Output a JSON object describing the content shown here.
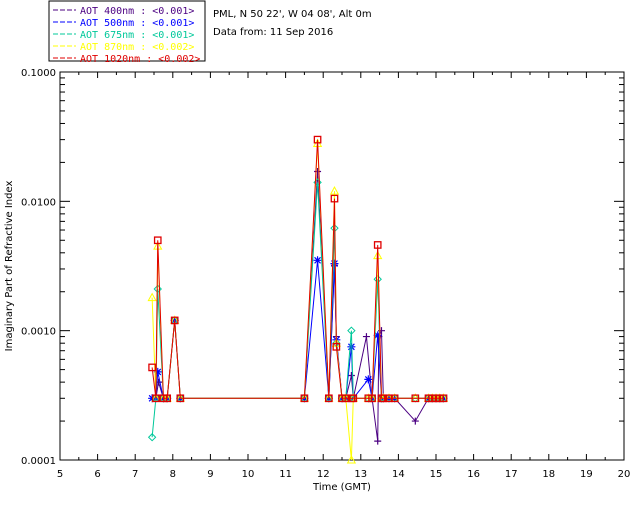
{
  "header": {
    "location": "PML, N 50 22', W 04 08', Alt 0m",
    "date_line": "Data from: 11 Sep 2016"
  },
  "legend": [
    {
      "label": "AOT  400nm : <0.001>",
      "color": "#4b0082"
    },
    {
      "label": "AOT  500nm : <0.001>",
      "color": "#0000ff"
    },
    {
      "label": "AOT  675nm : <0.001>",
      "color": "#00c89a"
    },
    {
      "label": "AOT  870nm : <0.002>",
      "color": "#ffff00"
    },
    {
      "label": "AOT 1020nm : <0.002>",
      "color": "#e00000"
    }
  ],
  "chart_data": {
    "type": "line",
    "title": "",
    "xlabel": "Time (GMT)",
    "ylabel": "Imaginary Part of Refractive Index",
    "yscale": "log",
    "xlim": [
      5,
      20
    ],
    "ylim": [
      0.0001,
      0.1
    ],
    "xticks": [
      5,
      6,
      7,
      8,
      9,
      10,
      11,
      12,
      13,
      14,
      15,
      16,
      17,
      18,
      19,
      20
    ],
    "yticks": [
      0.0001,
      0.001,
      0.01,
      0.1
    ],
    "ytick_labels": [
      "0.0001",
      "0.0010",
      "0.0100",
      "0.1000"
    ],
    "series": [
      {
        "name": "AOT  400nm",
        "color": "#4b0082",
        "marker": "plus",
        "x": [
          7.55,
          7.62,
          7.75,
          7.85,
          8.05,
          8.2,
          11.5,
          11.85,
          12.15,
          12.3,
          12.35,
          12.5,
          12.6,
          12.75,
          12.8,
          13.15,
          13.3,
          13.45,
          13.48,
          13.55,
          13.6,
          13.65,
          13.75,
          13.9,
          14.45,
          14.8,
          14.9,
          15.0,
          15.1,
          15.2
        ],
        "y": [
          0.0003,
          0.0004,
          0.0003,
          0.0003,
          0.0012,
          0.0003,
          0.0003,
          0.017,
          0.0003,
          0.0032,
          0.0009,
          0.0003,
          0.0003,
          0.00045,
          0.0003,
          0.0009,
          0.0003,
          0.00014,
          0.0009,
          0.001,
          0.0003,
          0.0003,
          0.0003,
          0.0003,
          0.0002,
          0.0003,
          0.0003,
          0.0003,
          0.0003,
          0.0003
        ]
      },
      {
        "name": "AOT  500nm",
        "color": "#0000ff",
        "marker": "asterisk",
        "x": [
          7.45,
          7.55,
          7.6,
          7.75,
          7.85,
          8.05,
          8.2,
          11.5,
          11.85,
          12.15,
          12.3,
          12.35,
          12.5,
          12.6,
          12.75,
          12.8,
          13.2,
          13.3,
          13.45,
          13.55,
          13.6,
          13.75,
          13.9,
          14.8,
          14.9,
          15.0,
          15.1,
          15.2
        ],
        "y": [
          0.0003,
          0.0003,
          0.00048,
          0.0003,
          0.0003,
          0.0012,
          0.0003,
          0.0003,
          0.0035,
          0.0003,
          0.0033,
          0.00085,
          0.0003,
          0.0003,
          0.00075,
          0.0003,
          0.00042,
          0.0003,
          0.00092,
          0.0003,
          0.0003,
          0.0003,
          0.0003,
          0.0003,
          0.0003,
          0.0003,
          0.0003,
          0.0003
        ]
      },
      {
        "name": "AOT  675nm",
        "color": "#00c89a",
        "marker": "diamond",
        "x": [
          7.45,
          7.55,
          7.6,
          7.75,
          7.85,
          8.05,
          8.2,
          11.5,
          11.85,
          12.15,
          12.3,
          12.35,
          12.5,
          12.6,
          12.75,
          12.8,
          13.2,
          13.3,
          13.45,
          13.55,
          13.6,
          13.75,
          13.9,
          14.45,
          14.8,
          14.9,
          15.0,
          15.1,
          15.2
        ],
        "y": [
          0.00015,
          0.0003,
          0.0021,
          0.0003,
          0.0003,
          0.0012,
          0.0003,
          0.0003,
          0.014,
          0.0003,
          0.0062,
          0.0008,
          0.0003,
          0.0003,
          0.001,
          0.0003,
          0.0003,
          0.0003,
          0.0025,
          0.0003,
          0.0003,
          0.0003,
          0.0003,
          0.0003,
          0.0003,
          0.0003,
          0.0003,
          0.0003,
          0.0003
        ]
      },
      {
        "name": "AOT  870nm",
        "color": "#ffff00",
        "marker": "triangle",
        "x": [
          7.45,
          7.55,
          7.6,
          7.75,
          7.85,
          8.05,
          8.2,
          11.5,
          11.85,
          12.15,
          12.3,
          12.35,
          12.5,
          12.6,
          12.75,
          12.8,
          13.2,
          13.3,
          13.45,
          13.55,
          13.6,
          13.75,
          13.9,
          14.45,
          14.8,
          14.9,
          15.0,
          15.1,
          15.2
        ],
        "y": [
          0.0018,
          0.0003,
          0.0045,
          0.0003,
          0.0003,
          0.0012,
          0.0003,
          0.0003,
          0.028,
          0.0003,
          0.012,
          0.0008,
          0.0003,
          0.0003,
          0.0001,
          0.0003,
          0.0003,
          0.0003,
          0.0038,
          0.0003,
          0.0003,
          0.0003,
          0.0003,
          0.0003,
          0.0003,
          0.0003,
          0.0003,
          0.0003,
          0.0003
        ]
      },
      {
        "name": "AOT 1020nm",
        "color": "#e00000",
        "marker": "square",
        "x": [
          7.45,
          7.55,
          7.6,
          7.75,
          7.85,
          8.05,
          8.2,
          11.5,
          11.85,
          12.15,
          12.3,
          12.35,
          12.5,
          12.6,
          12.75,
          12.8,
          13.2,
          13.3,
          13.45,
          13.55,
          13.6,
          13.75,
          13.9,
          14.45,
          14.8,
          14.9,
          15.0,
          15.1,
          15.2
        ],
        "y": [
          0.00052,
          0.0003,
          0.005,
          0.0003,
          0.0003,
          0.0012,
          0.0003,
          0.0003,
          0.03,
          0.0003,
          0.0105,
          0.00075,
          0.0003,
          0.0003,
          0.0003,
          0.0003,
          0.0003,
          0.0003,
          0.0046,
          0.0003,
          0.0003,
          0.0003,
          0.0003,
          0.0003,
          0.0003,
          0.0003,
          0.0003,
          0.0003,
          0.0003
        ]
      }
    ]
  }
}
